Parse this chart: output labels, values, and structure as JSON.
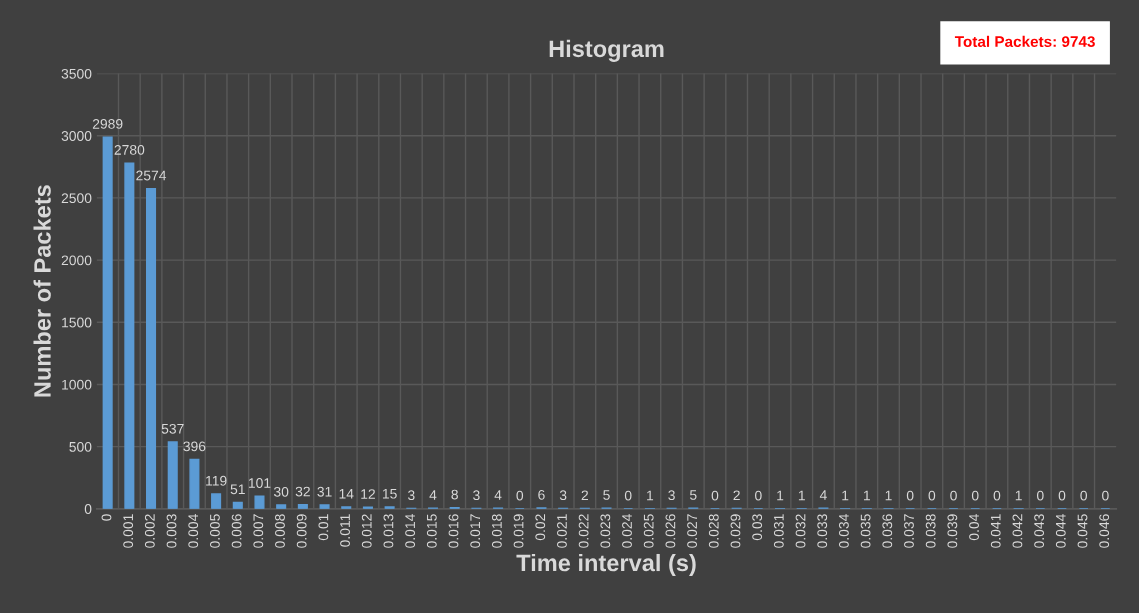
{
  "chart_data": {
    "type": "bar",
    "title": "Histogram",
    "xlabel": "Time interval (s)",
    "ylabel": "Number of Packets",
    "annotations": [
      "Total Packets: 9743"
    ],
    "categories": [
      "0",
      "0.001",
      "0.002",
      "0.003",
      "0.004",
      "0.005",
      "0.006",
      "0.007",
      "0.008",
      "0.009",
      "0.01",
      "0.011",
      "0.012",
      "0.013",
      "0.014",
      "0.015",
      "0.016",
      "0.017",
      "0.018",
      "0.019",
      "0.02",
      "0.021",
      "0.022",
      "0.023",
      "0.024",
      "0.025",
      "0.026",
      "0.027",
      "0.028",
      "0.029",
      "0.03",
      "0.031",
      "0.032",
      "0.033",
      "0.034",
      "0.035",
      "0.036",
      "0.037",
      "0.038",
      "0.039",
      "0.04",
      "0.041",
      "0.042",
      "0.043",
      "0.044",
      "0.045",
      "0.046"
    ],
    "values": [
      2989,
      2780,
      2574,
      537,
      396,
      119,
      51,
      101,
      30,
      32,
      31,
      14,
      12,
      15,
      3,
      4,
      8,
      3,
      4,
      0,
      6,
      3,
      2,
      5,
      0,
      1,
      3,
      5,
      0,
      2,
      0,
      1,
      1,
      4,
      1,
      1,
      1,
      0,
      0,
      0,
      0,
      0,
      1,
      0,
      0,
      0,
      0
    ],
    "color": "#5b9bd5",
    "ylim": [
      0,
      3500
    ],
    "yticks": [
      0,
      500,
      1000,
      1500,
      2000,
      2500,
      3000,
      3500
    ],
    "grid": true,
    "data_labels": true
  }
}
